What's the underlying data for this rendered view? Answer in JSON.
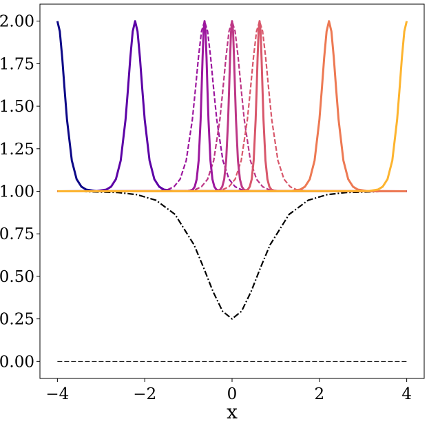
{
  "chart_data": {
    "type": "line",
    "xlabel": "x",
    "xlim": [
      -4.4,
      4.4
    ],
    "ylim": [
      -0.1,
      2.1
    ],
    "xticks": [
      {
        "value": -4,
        "label": "−4"
      },
      {
        "value": -2,
        "label": "−2"
      },
      0,
      2,
      4
    ],
    "yticks": [
      {
        "value": 0,
        "label": "0.00"
      },
      {
        "value": 0.25,
        "label": "0.25"
      },
      {
        "value": 0.5,
        "label": "0.50"
      },
      {
        "value": 0.75,
        "label": "0.75"
      },
      {
        "value": 1,
        "label": "1.00"
      },
      {
        "value": 1.25,
        "label": "1.25"
      },
      {
        "value": 1.5,
        "label": "1.50"
      },
      {
        "value": 1.75,
        "label": "1.75"
      },
      {
        "value": 2,
        "label": "2.00"
      }
    ],
    "series": [
      {
        "color": "#000000",
        "linestyle": "dashed",
        "linewidth": 1,
        "x": [
          -4,
          4
        ],
        "values": [
          0,
          0
        ]
      },
      {
        "color": "#000000",
        "linestyle": "dashdot",
        "linewidth": 2.2,
        "x": [
          -4,
          -3.48,
          -2.61,
          -2.175,
          -1.74,
          -1.305,
          -0.87,
          -0.653,
          -0.435,
          -0.218,
          0,
          0.218,
          0.435,
          0.653,
          0.87,
          1.305,
          1.74,
          2.175,
          2.61,
          3.48,
          4
        ],
        "values": [
          1,
          0.999,
          0.993,
          0.98,
          0.947,
          0.864,
          0.685,
          0.552,
          0.41,
          0.295,
          0.25,
          0.295,
          0.41,
          0.552,
          0.685,
          0.864,
          0.947,
          0.98,
          0.993,
          0.999,
          1
        ]
      },
      {
        "color": "#9c179e",
        "linestyle": "dashed",
        "linewidth": 2.2,
        "x": [
          -4,
          -1.75,
          -1.47,
          -1.33,
          -1.19,
          -1.05,
          -0.91,
          -0.84,
          -0.77,
          -0.7,
          -0.63,
          -0.56,
          -0.49,
          -0.42,
          -0.35,
          -0.21,
          -0.07,
          0.07,
          0.21,
          0.49,
          4
        ],
        "values": [
          1,
          1.001,
          1.01,
          1.027,
          1.071,
          1.181,
          1.42,
          1.597,
          1.786,
          1.94,
          2,
          1.94,
          1.786,
          1.597,
          1.42,
          1.181,
          1.071,
          1.027,
          1.01,
          1.001,
          1
        ]
      },
      {
        "color": "#bd3786",
        "linestyle": "dashed",
        "linewidth": 2.2,
        "x": [
          -4,
          -1.12,
          -0.84,
          -0.7,
          -0.56,
          -0.42,
          -0.28,
          -0.21,
          -0.14,
          -0.07,
          0,
          0.07,
          0.14,
          0.21,
          0.28,
          0.42,
          0.56,
          0.7,
          0.84,
          1.12,
          4
        ],
        "values": [
          1,
          1.001,
          1.01,
          1.027,
          1.071,
          1.181,
          1.42,
          1.597,
          1.786,
          1.94,
          2,
          1.94,
          1.786,
          1.597,
          1.42,
          1.181,
          1.071,
          1.027,
          1.01,
          1.001,
          1
        ]
      },
      {
        "color": "#d8576b",
        "linestyle": "dashed",
        "linewidth": 2.2,
        "x": [
          -4,
          -0.49,
          -0.21,
          -0.07,
          0.07,
          0.21,
          0.35,
          0.42,
          0.49,
          0.56,
          0.63,
          0.7,
          0.77,
          0.84,
          0.91,
          1.05,
          1.19,
          1.33,
          1.47,
          1.75,
          4
        ],
        "values": [
          1,
          1.001,
          1.01,
          1.027,
          1.071,
          1.181,
          1.42,
          1.597,
          1.786,
          1.94,
          2,
          1.94,
          1.786,
          1.597,
          1.42,
          1.181,
          1.071,
          1.027,
          1.01,
          1.001,
          1
        ]
      },
      {
        "color": "#0d0887",
        "linestyle": "solid",
        "linewidth": 3,
        "x": [
          -4,
          -3.945,
          -3.89,
          -3.835,
          -3.78,
          -3.67,
          -3.56,
          -3.45,
          -3.34,
          -3.12,
          4
        ],
        "values": [
          2,
          1.94,
          1.786,
          1.597,
          1.42,
          1.181,
          1.071,
          1.027,
          1.01,
          1.001,
          1
        ]
      },
      {
        "color": "#5c01a6",
        "linestyle": "solid",
        "linewidth": 3,
        "x": [
          -4,
          -3.1,
          -2.88,
          -2.77,
          -2.66,
          -2.55,
          -2.44,
          -2.385,
          -2.33,
          -2.275,
          -2.22,
          -2.165,
          -2.11,
          -2.055,
          -2,
          -1.89,
          -1.78,
          -1.67,
          -1.56,
          -1.34,
          4
        ],
        "values": [
          1,
          1.001,
          1.01,
          1.027,
          1.071,
          1.181,
          1.42,
          1.597,
          1.786,
          1.94,
          2,
          1.94,
          1.786,
          1.597,
          1.42,
          1.181,
          1.071,
          1.027,
          1.01,
          1.001,
          1
        ]
      },
      {
        "color": "#9c179e",
        "linestyle": "solid",
        "linewidth": 3,
        "x": [
          -4,
          -0.99,
          -0.9,
          -0.855,
          -0.81,
          -0.765,
          -0.72,
          -0.698,
          -0.675,
          -0.653,
          -0.63,
          -0.608,
          -0.585,
          -0.563,
          -0.54,
          -0.495,
          -0.45,
          -0.405,
          -0.36,
          -0.27,
          4
        ],
        "values": [
          1,
          1.001,
          1.01,
          1.027,
          1.071,
          1.181,
          1.42,
          1.597,
          1.786,
          1.94,
          2,
          1.94,
          1.786,
          1.597,
          1.42,
          1.181,
          1.071,
          1.027,
          1.01,
          1.001,
          1
        ]
      },
      {
        "color": "#bd3786",
        "linestyle": "solid",
        "linewidth": 3,
        "x": [
          -4,
          -0.36,
          -0.27,
          -0.225,
          -0.18,
          -0.135,
          -0.09,
          -0.068,
          -0.045,
          -0.023,
          0,
          0.023,
          0.045,
          0.068,
          0.09,
          0.135,
          0.18,
          0.225,
          0.27,
          0.36,
          4
        ],
        "values": [
          1,
          1.001,
          1.01,
          1.027,
          1.071,
          1.181,
          1.42,
          1.597,
          1.786,
          1.94,
          2,
          1.94,
          1.786,
          1.597,
          1.42,
          1.181,
          1.071,
          1.027,
          1.01,
          1.001,
          1
        ]
      },
      {
        "color": "#d8576b",
        "linestyle": "solid",
        "linewidth": 3,
        "x": [
          -4,
          0.27,
          0.36,
          0.405,
          0.45,
          0.495,
          0.54,
          0.563,
          0.585,
          0.608,
          0.63,
          0.653,
          0.675,
          0.698,
          0.72,
          0.765,
          0.81,
          0.855,
          0.9,
          0.99,
          4
        ],
        "values": [
          1,
          1.001,
          1.01,
          1.027,
          1.071,
          1.181,
          1.42,
          1.597,
          1.786,
          1.94,
          2,
          1.94,
          1.786,
          1.597,
          1.42,
          1.181,
          1.071,
          1.027,
          1.01,
          1.001,
          1
        ]
      },
      {
        "color": "#ed7953",
        "linestyle": "solid",
        "linewidth": 3,
        "x": [
          -4,
          1.34,
          1.56,
          1.67,
          1.78,
          1.89,
          2,
          2.055,
          2.11,
          2.165,
          2.22,
          2.275,
          2.33,
          2.385,
          2.44,
          2.55,
          2.66,
          2.77,
          2.88,
          3.1,
          4
        ],
        "values": [
          1,
          1.001,
          1.01,
          1.027,
          1.071,
          1.181,
          1.42,
          1.597,
          1.786,
          1.94,
          2,
          1.94,
          1.786,
          1.597,
          1.42,
          1.181,
          1.071,
          1.027,
          1.01,
          1.001,
          1
        ]
      },
      {
        "color": "#fdb42f",
        "linestyle": "solid",
        "linewidth": 3,
        "x": [
          -4,
          3.12,
          3.34,
          3.45,
          3.56,
          3.67,
          3.78,
          3.835,
          3.89,
          3.945,
          4
        ],
        "values": [
          1,
          1.001,
          1.01,
          1.027,
          1.071,
          1.181,
          1.42,
          1.597,
          1.786,
          1.94,
          2
        ]
      }
    ]
  }
}
